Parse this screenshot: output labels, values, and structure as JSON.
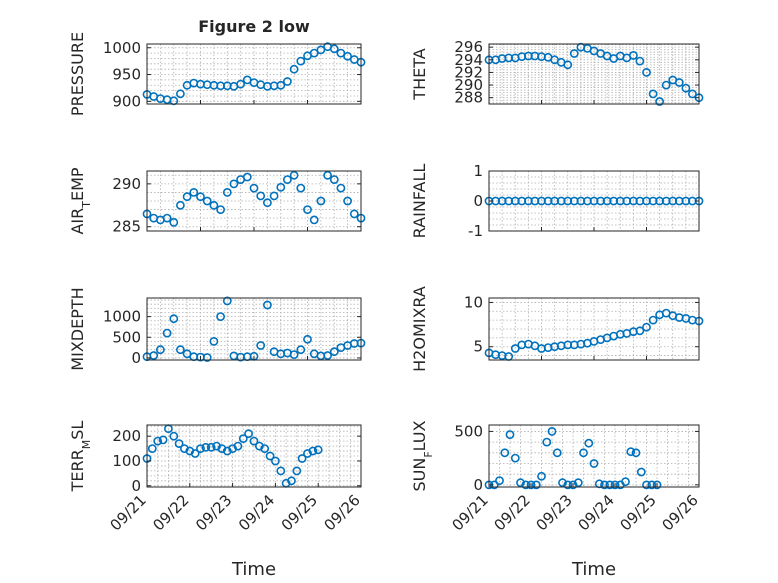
{
  "figure": {
    "title": "Figure 2 low",
    "xlabel": "Time"
  },
  "colors": {
    "series": "#0072bd",
    "axis": "#262626",
    "grid": "#b0b0b0"
  },
  "chart_data": [
    {
      "id": "pressure",
      "type": "scatter",
      "title": "Figure 2 low",
      "ylabel": "PRESSURE",
      "xlabel": "",
      "ylim": [
        895,
        1007
      ],
      "yticks": [
        "900",
        "950",
        "1000"
      ],
      "ytick_values": [
        900,
        950,
        1000
      ],
      "xlim": [
        "09/21",
        "09/25"
      ],
      "x": [
        "09/21 00:00",
        "09/21 03:00",
        "09/21 06:00",
        "09/21 09:00",
        "09/21 12:00",
        "09/21 15:00",
        "09/21 18:00",
        "09/21 21:00",
        "09/22 00:00",
        "09/22 03:00",
        "09/22 06:00",
        "09/22 09:00",
        "09/22 12:00",
        "09/22 15:00",
        "09/22 18:00",
        "09/22 21:00",
        "09/23 00:00",
        "09/23 03:00",
        "09/23 06:00",
        "09/23 09:00",
        "09/23 12:00",
        "09/23 15:00",
        "09/23 18:00",
        "09/23 21:00",
        "09/24 00:00",
        "09/24 03:00",
        "09/24 06:00",
        "09/24 09:00",
        "09/24 12:00",
        "09/24 15:00",
        "09/24 18:00",
        "09/24 21:00",
        "09/25 00:00"
      ],
      "values": [
        913,
        909,
        905,
        903,
        901,
        914,
        930,
        934,
        932,
        931,
        930,
        929,
        929,
        928,
        932,
        940,
        935,
        931,
        928,
        929,
        930,
        937,
        960,
        975,
        985,
        990,
        996,
        1002,
        998,
        990,
        984,
        978,
        973
      ]
    },
    {
      "id": "theta",
      "type": "scatter",
      "ylabel": "THETA",
      "xlabel": "",
      "ylim": [
        287,
        296.5
      ],
      "yticks": [
        "296",
        "294",
        "292",
        "290",
        "288"
      ],
      "ytick_values": [
        296,
        294,
        292,
        290,
        288
      ],
      "xlim": [
        "09/21",
        "09/25"
      ],
      "x": [
        "09/21 00:00",
        "09/21 03:00",
        "09/21 06:00",
        "09/21 09:00",
        "09/21 12:00",
        "09/21 15:00",
        "09/21 18:00",
        "09/21 21:00",
        "09/22 00:00",
        "09/22 03:00",
        "09/22 06:00",
        "09/22 09:00",
        "09/22 12:00",
        "09/22 15:00",
        "09/22 18:00",
        "09/22 21:00",
        "09/23 00:00",
        "09/23 03:00",
        "09/23 06:00",
        "09/23 09:00",
        "09/23 12:00",
        "09/23 15:00",
        "09/23 18:00",
        "09/23 21:00",
        "09/24 00:00",
        "09/24 03:00",
        "09/24 06:00",
        "09/24 09:00",
        "09/24 12:00",
        "09/24 15:00",
        "09/24 18:00",
        "09/24 21:00",
        "09/25 00:00"
      ],
      "values": [
        294,
        294,
        294.2,
        294.3,
        294.3,
        294.5,
        294.6,
        294.6,
        294.5,
        294.4,
        294,
        293.6,
        293.2,
        295,
        296,
        295.8,
        295.4,
        295,
        294.6,
        294.2,
        294.6,
        294.3,
        294.7,
        293.8,
        292,
        288.6,
        287.4,
        290,
        290.8,
        290.4,
        289.5,
        288.6,
        288
      ]
    },
    {
      "id": "air_temp",
      "type": "scatter",
      "ylabel": "AIR",
      "ylabel_sub": "T",
      "ylabel_suffix": "EMP",
      "xlabel": "",
      "ylim": [
        284.5,
        291.5
      ],
      "yticks": [
        "285",
        "290"
      ],
      "ytick_values": [
        285,
        290
      ],
      "xlim": [
        "09/21",
        "09/25"
      ],
      "x": [
        "09/21 00:00",
        "09/21 03:00",
        "09/21 06:00",
        "09/21 09:00",
        "09/21 12:00",
        "09/21 15:00",
        "09/21 18:00",
        "09/21 21:00",
        "09/22 00:00",
        "09/22 03:00",
        "09/22 06:00",
        "09/22 09:00",
        "09/22 12:00",
        "09/22 15:00",
        "09/22 18:00",
        "09/22 21:00",
        "09/23 00:00",
        "09/23 03:00",
        "09/23 06:00",
        "09/23 09:00",
        "09/23 12:00",
        "09/23 15:00",
        "09/23 18:00",
        "09/23 21:00",
        "09/24 00:00",
        "09/24 03:00",
        "09/24 06:00",
        "09/24 09:00",
        "09/24 12:00",
        "09/24 15:00",
        "09/24 18:00",
        "09/24 21:00",
        "09/25 00:00"
      ],
      "values": [
        286.5,
        286,
        285.8,
        286,
        285.5,
        287.5,
        288.5,
        289,
        288.5,
        288,
        287.5,
        287,
        289,
        290,
        290.5,
        290.8,
        289.5,
        288.6,
        287.8,
        288.6,
        289.6,
        290.5,
        291,
        289.5,
        287,
        285.8,
        288,
        291,
        290.5,
        289.5,
        288,
        286.5,
        286
      ]
    },
    {
      "id": "rainfall",
      "type": "scatter",
      "ylabel": "RAINFALL",
      "xlabel": "",
      "ylim": [
        -1,
        1
      ],
      "yticks": [
        "1",
        "0",
        "-1"
      ],
      "ytick_values": [
        1,
        0,
        -1
      ],
      "xlim": [
        "09/21",
        "09/25"
      ],
      "x": [
        "09/21 00:00",
        "09/21 03:00",
        "09/21 06:00",
        "09/21 09:00",
        "09/21 12:00",
        "09/21 15:00",
        "09/21 18:00",
        "09/21 21:00",
        "09/22 00:00",
        "09/22 03:00",
        "09/22 06:00",
        "09/22 09:00",
        "09/22 12:00",
        "09/22 15:00",
        "09/22 18:00",
        "09/22 21:00",
        "09/23 00:00",
        "09/23 03:00",
        "09/23 06:00",
        "09/23 09:00",
        "09/23 12:00",
        "09/23 15:00",
        "09/23 18:00",
        "09/23 21:00",
        "09/24 00:00",
        "09/24 03:00",
        "09/24 06:00",
        "09/24 09:00",
        "09/24 12:00",
        "09/24 15:00",
        "09/24 18:00",
        "09/24 21:00",
        "09/25 00:00"
      ],
      "values": [
        0,
        0,
        0,
        0,
        0,
        0,
        0,
        0,
        0,
        0,
        0,
        0,
        0,
        0,
        0,
        0,
        0,
        0,
        0,
        0,
        0,
        0,
        0,
        0,
        0,
        0,
        0,
        0,
        0,
        0,
        0,
        0,
        0
      ]
    },
    {
      "id": "mixdepth",
      "type": "scatter",
      "ylabel": "MIXDEPTH",
      "xlabel": "",
      "ylim": [
        -50,
        1450
      ],
      "yticks": [
        "0",
        "500",
        "1000"
      ],
      "ytick_values": [
        0,
        500,
        1000
      ],
      "xlim": [
        "09/21",
        "09/25"
      ],
      "x": [
        "09/21 00:00",
        "09/21 03:00",
        "09/21 06:00",
        "09/21 09:00",
        "09/21 12:00",
        "09/21 15:00",
        "09/21 18:00",
        "09/21 21:00",
        "09/22 00:00",
        "09/22 03:00",
        "09/22 06:00",
        "09/22 09:00",
        "09/22 12:00",
        "09/22 15:00",
        "09/22 18:00",
        "09/22 21:00",
        "09/23 00:00",
        "09/23 03:00",
        "09/23 06:00",
        "09/23 09:00",
        "09/23 12:00",
        "09/23 15:00",
        "09/23 18:00",
        "09/23 21:00",
        "09/24 00:00",
        "09/24 03:00",
        "09/24 06:00",
        "09/24 09:00",
        "09/24 12:00",
        "09/24 15:00",
        "09/24 18:00",
        "09/24 21:00",
        "09/25 00:00"
      ],
      "values": [
        30,
        60,
        200,
        600,
        950,
        200,
        100,
        30,
        20,
        10,
        400,
        1000,
        1380,
        50,
        20,
        30,
        40,
        300,
        1280,
        150,
        100,
        120,
        80,
        200,
        450,
        100,
        50,
        60,
        150,
        250,
        300,
        350,
        360
      ]
    },
    {
      "id": "h2omixra",
      "type": "scatter",
      "ylabel": "H2OMIXRA",
      "xlabel": "",
      "ylim": [
        3.5,
        10.5
      ],
      "yticks": [
        "5",
        "10"
      ],
      "ytick_values": [
        5,
        10
      ],
      "xlim": [
        "09/21",
        "09/25"
      ],
      "x": [
        "09/21 00:00",
        "09/21 03:00",
        "09/21 06:00",
        "09/21 09:00",
        "09/21 12:00",
        "09/21 15:00",
        "09/21 18:00",
        "09/21 21:00",
        "09/22 00:00",
        "09/22 03:00",
        "09/22 06:00",
        "09/22 09:00",
        "09/22 12:00",
        "09/22 15:00",
        "09/22 18:00",
        "09/22 21:00",
        "09/23 00:00",
        "09/23 03:00",
        "09/23 06:00",
        "09/23 09:00",
        "09/23 12:00",
        "09/23 15:00",
        "09/23 18:00",
        "09/23 21:00",
        "09/24 00:00",
        "09/24 03:00",
        "09/24 06:00",
        "09/24 09:00",
        "09/24 12:00",
        "09/24 15:00",
        "09/24 18:00",
        "09/24 21:00",
        "09/25 00:00"
      ],
      "values": [
        4.3,
        4.1,
        4,
        3.9,
        4.8,
        5.2,
        5.3,
        5.1,
        4.8,
        4.9,
        5,
        5.1,
        5.2,
        5.2,
        5.3,
        5.4,
        5.6,
        5.8,
        6,
        6.2,
        6.4,
        6.5,
        6.7,
        6.8,
        7.2,
        8,
        8.6,
        8.8,
        8.5,
        8.3,
        8.2,
        8,
        7.9
      ]
    },
    {
      "id": "terr_msl",
      "type": "scatter",
      "ylabel": "TERR",
      "ylabel_sub": "M",
      "ylabel_suffix": "SL",
      "xlabel": "Time",
      "ylim": [
        -5,
        245
      ],
      "yticks": [
        "0",
        "100",
        "200"
      ],
      "ytick_values": [
        0,
        100,
        200
      ],
      "xlim": [
        "09/21",
        "09/26"
      ],
      "xticks": [
        "09/21",
        "09/22",
        "09/23",
        "09/24",
        "09/25",
        "09/26"
      ],
      "x": [
        "09/21 00:00",
        "09/21 03:00",
        "09/21 06:00",
        "09/21 09:00",
        "09/21 12:00",
        "09/21 15:00",
        "09/21 18:00",
        "09/21 21:00",
        "09/22 00:00",
        "09/22 03:00",
        "09/22 06:00",
        "09/22 09:00",
        "09/22 12:00",
        "09/22 15:00",
        "09/22 18:00",
        "09/22 21:00",
        "09/23 00:00",
        "09/23 03:00",
        "09/23 06:00",
        "09/23 09:00",
        "09/23 12:00",
        "09/23 15:00",
        "09/23 18:00",
        "09/23 21:00",
        "09/24 00:00",
        "09/24 03:00",
        "09/24 06:00",
        "09/24 09:00",
        "09/24 12:00",
        "09/24 15:00",
        "09/24 18:00",
        "09/24 21:00",
        "09/25 00:00"
      ],
      "values": [
        110,
        150,
        180,
        185,
        230,
        200,
        170,
        150,
        140,
        130,
        150,
        155,
        155,
        160,
        150,
        140,
        150,
        160,
        190,
        210,
        180,
        160,
        150,
        120,
        100,
        60,
        10,
        20,
        60,
        110,
        130,
        140,
        145
      ]
    },
    {
      "id": "sun_flux",
      "type": "scatter",
      "ylabel": "SUN",
      "ylabel_sub": "F",
      "ylabel_suffix": "LUX",
      "xlabel": "Time",
      "ylim": [
        -20,
        560
      ],
      "yticks": [
        "0",
        "500"
      ],
      "ytick_values": [
        0,
        500
      ],
      "xlim": [
        "09/21",
        "09/26"
      ],
      "xticks": [
        "09/21",
        "09/22",
        "09/23",
        "09/24",
        "09/25",
        "09/26"
      ],
      "x": [
        "09/21 00:00",
        "09/21 03:00",
        "09/21 06:00",
        "09/21 09:00",
        "09/21 12:00",
        "09/21 15:00",
        "09/21 18:00",
        "09/21 21:00",
        "09/22 00:00",
        "09/22 03:00",
        "09/22 06:00",
        "09/22 09:00",
        "09/22 12:00",
        "09/22 15:00",
        "09/22 18:00",
        "09/22 21:00",
        "09/23 00:00",
        "09/23 03:00",
        "09/23 06:00",
        "09/23 09:00",
        "09/23 12:00",
        "09/23 15:00",
        "09/23 18:00",
        "09/23 21:00",
        "09/24 00:00",
        "09/24 03:00",
        "09/24 06:00",
        "09/24 09:00",
        "09/24 12:00",
        "09/24 15:00",
        "09/24 18:00",
        "09/24 21:00",
        "09/25 00:00"
      ],
      "values": [
        0,
        0,
        40,
        300,
        470,
        250,
        20,
        0,
        0,
        0,
        80,
        400,
        500,
        300,
        20,
        0,
        0,
        20,
        300,
        390,
        200,
        10,
        0,
        0,
        0,
        0,
        30,
        310,
        300,
        120,
        0,
        0,
        0
      ]
    }
  ]
}
